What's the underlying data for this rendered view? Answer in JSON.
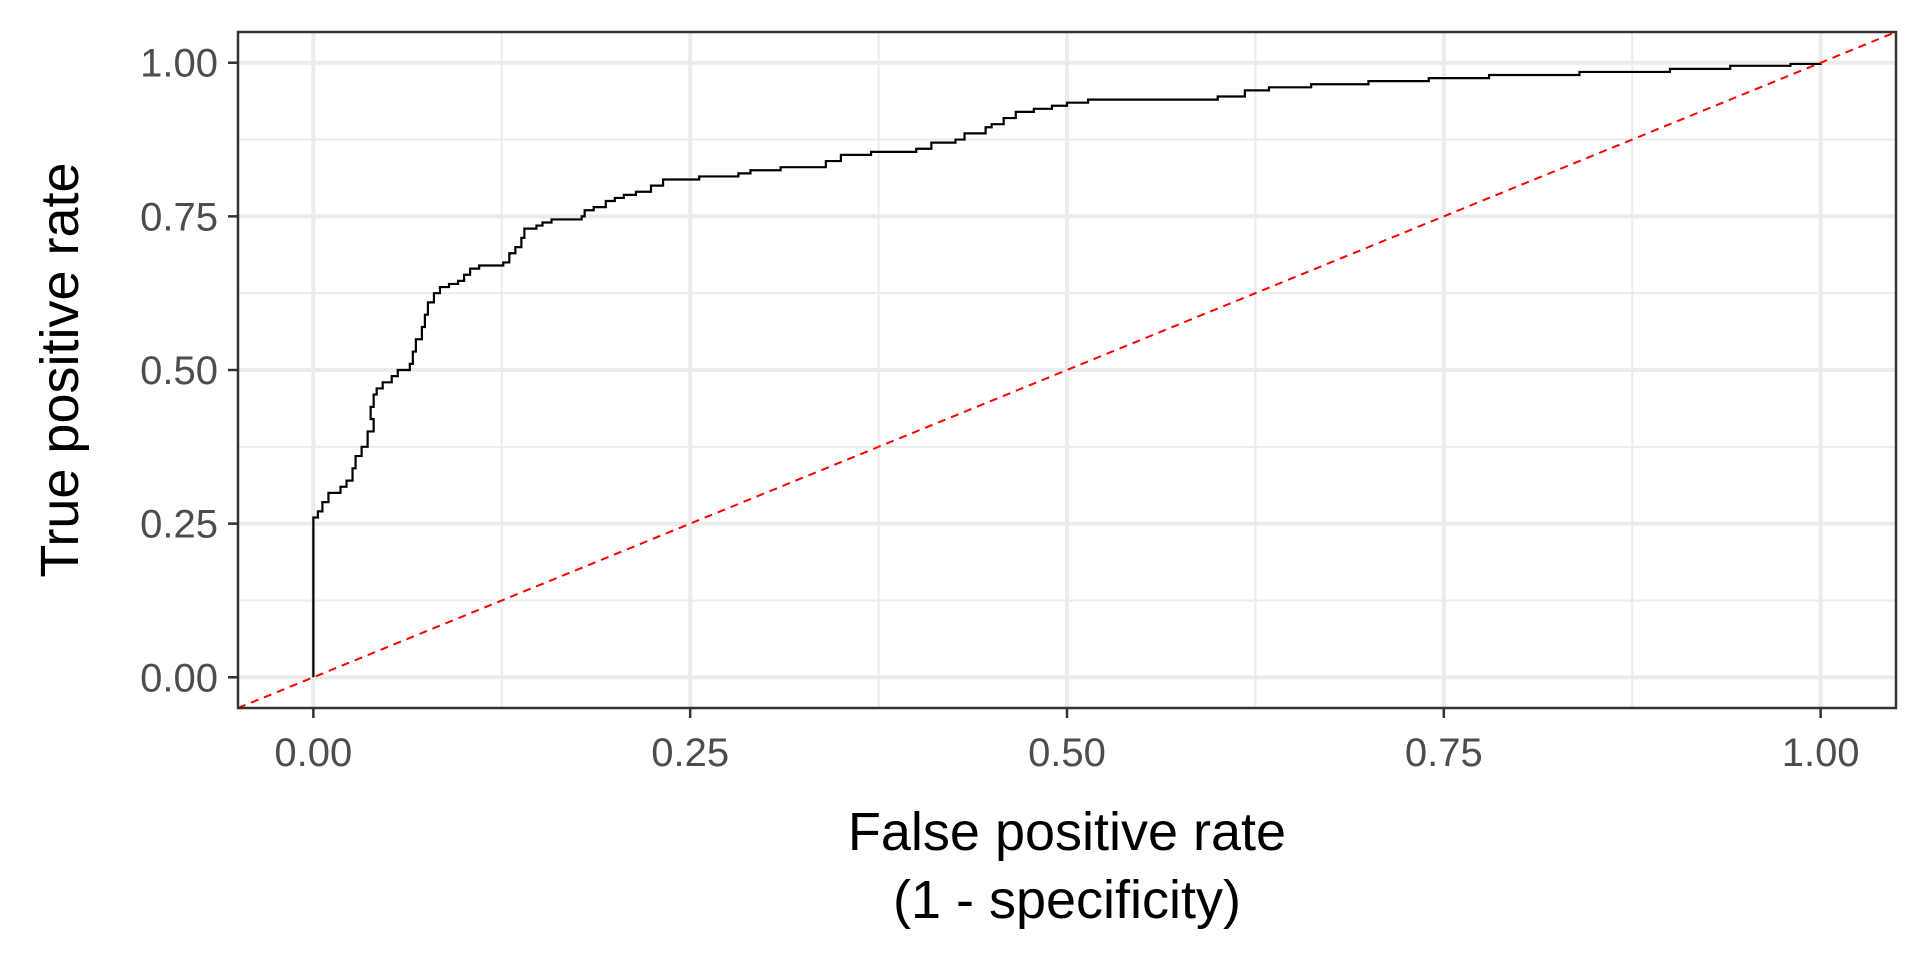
{
  "chart_data": {
    "type": "line",
    "title": "",
    "xlabel": "False positive rate",
    "xlabel_line2": "(1 - specificity)",
    "ylabel": "True positive rate",
    "xlim": [
      -0.05,
      1.05
    ],
    "ylim": [
      -0.05,
      1.05
    ],
    "x_ticks": [
      0,
      0.25,
      0.5,
      0.75,
      1
    ],
    "x_tick_labels": [
      "0.00",
      "0.25",
      "0.50",
      "0.75",
      "1.00"
    ],
    "y_ticks": [
      0,
      0.25,
      0.5,
      0.75,
      1
    ],
    "y_tick_labels": [
      "0.00",
      "0.25",
      "0.50",
      "0.75",
      "1.00"
    ],
    "grid": true,
    "legend": "none",
    "series": [
      {
        "style": "step",
        "color": "#000000",
        "points": [
          [
            0.0,
            0.0
          ],
          [
            0.0,
            0.26
          ],
          [
            0.003,
            0.27
          ],
          [
            0.006,
            0.285
          ],
          [
            0.01,
            0.3
          ],
          [
            0.018,
            0.31
          ],
          [
            0.022,
            0.32
          ],
          [
            0.026,
            0.34
          ],
          [
            0.028,
            0.36
          ],
          [
            0.032,
            0.375
          ],
          [
            0.036,
            0.4
          ],
          [
            0.04,
            0.42
          ],
          [
            0.038,
            0.44
          ],
          [
            0.04,
            0.46
          ],
          [
            0.042,
            0.47
          ],
          [
            0.046,
            0.48
          ],
          [
            0.052,
            0.49
          ],
          [
            0.056,
            0.5
          ],
          [
            0.064,
            0.51
          ],
          [
            0.066,
            0.53
          ],
          [
            0.068,
            0.55
          ],
          [
            0.072,
            0.57
          ],
          [
            0.074,
            0.59
          ],
          [
            0.076,
            0.61
          ],
          [
            0.08,
            0.625
          ],
          [
            0.084,
            0.635
          ],
          [
            0.09,
            0.64
          ],
          [
            0.096,
            0.645
          ],
          [
            0.1,
            0.655
          ],
          [
            0.104,
            0.665
          ],
          [
            0.11,
            0.67
          ],
          [
            0.126,
            0.675
          ],
          [
            0.13,
            0.69
          ],
          [
            0.134,
            0.7
          ],
          [
            0.138,
            0.715
          ],
          [
            0.14,
            0.73
          ],
          [
            0.148,
            0.735
          ],
          [
            0.152,
            0.74
          ],
          [
            0.158,
            0.745
          ],
          [
            0.178,
            0.75
          ],
          [
            0.18,
            0.76
          ],
          [
            0.186,
            0.765
          ],
          [
            0.194,
            0.775
          ],
          [
            0.2,
            0.78
          ],
          [
            0.206,
            0.785
          ],
          [
            0.214,
            0.79
          ],
          [
            0.224,
            0.8
          ],
          [
            0.232,
            0.81
          ],
          [
            0.256,
            0.815
          ],
          [
            0.282,
            0.82
          ],
          [
            0.29,
            0.825
          ],
          [
            0.31,
            0.83
          ],
          [
            0.34,
            0.84
          ],
          [
            0.35,
            0.85
          ],
          [
            0.37,
            0.855
          ],
          [
            0.4,
            0.86
          ],
          [
            0.41,
            0.87
          ],
          [
            0.426,
            0.875
          ],
          [
            0.432,
            0.885
          ],
          [
            0.446,
            0.895
          ],
          [
            0.45,
            0.9
          ],
          [
            0.458,
            0.91
          ],
          [
            0.466,
            0.92
          ],
          [
            0.478,
            0.925
          ],
          [
            0.49,
            0.93
          ],
          [
            0.5,
            0.935
          ],
          [
            0.514,
            0.94
          ],
          [
            0.6,
            0.945
          ],
          [
            0.618,
            0.955
          ],
          [
            0.634,
            0.96
          ],
          [
            0.662,
            0.965
          ],
          [
            0.7,
            0.97
          ],
          [
            0.74,
            0.975
          ],
          [
            0.78,
            0.98
          ],
          [
            0.84,
            0.985
          ],
          [
            0.9,
            0.99
          ],
          [
            0.94,
            0.995
          ],
          [
            0.98,
            0.998
          ],
          [
            1.0,
            1.0
          ]
        ]
      },
      {
        "style": "dashed",
        "color": "#ff0000",
        "points": [
          [
            -0.05,
            -0.05
          ],
          [
            1.05,
            1.05
          ]
        ]
      }
    ]
  }
}
